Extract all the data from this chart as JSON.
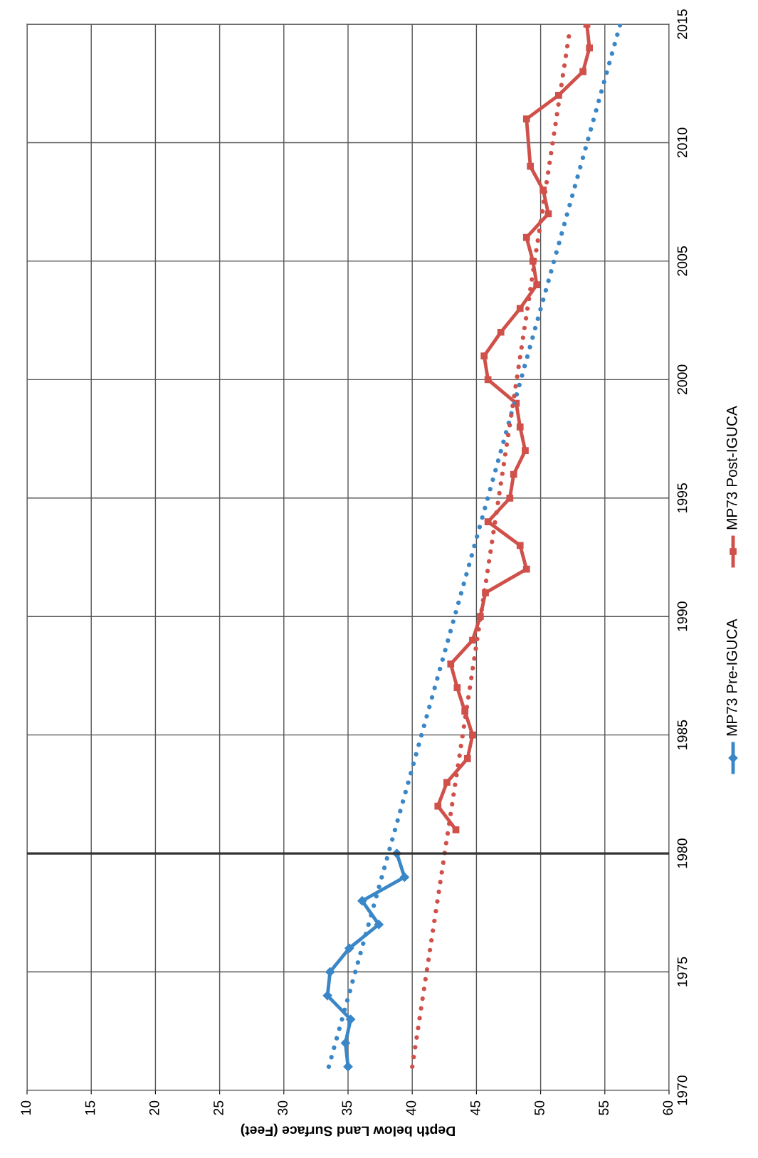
{
  "chart_data": {
    "type": "line",
    "xlabel": "Depth below Land Surface (Feet)",
    "xlim": [
      10,
      60
    ],
    "xticks": [
      10,
      15,
      20,
      25,
      30,
      35,
      40,
      45,
      50,
      55,
      60
    ],
    "ylim": [
      1970,
      2015
    ],
    "yticks": [
      1970,
      1975,
      1980,
      1985,
      1990,
      1995,
      2000,
      2005,
      2010,
      2015
    ],
    "grid": true,
    "legend": "right",
    "ref_lines": [
      {
        "axis": "y",
        "value": 1980,
        "color": "#333333"
      }
    ],
    "series": [
      {
        "name": "MP73 Pre-IGUCA",
        "color": "#3a87c8",
        "marker": "diamond",
        "line_style": "solid",
        "x": [
          35.0,
          34.8,
          35.2,
          33.4,
          33.6,
          35.1,
          37.4,
          36.1,
          39.4,
          38.8
        ],
        "values": [
          1971,
          1972,
          1973,
          1974,
          1975,
          1976,
          1977,
          1978,
          1979,
          1980
        ]
      },
      {
        "name": "MP73 Post-IGUCA",
        "color": "#d0504a",
        "marker": "square",
        "line_style": "solid",
        "x": [
          43.4,
          42.0,
          42.7,
          44.3,
          44.7,
          44.1,
          43.5,
          43.0,
          44.7,
          45.3,
          45.7,
          48.9,
          48.4,
          45.9,
          47.6,
          47.9,
          48.8,
          48.4,
          48.1,
          45.9,
          45.6,
          46.9,
          48.4,
          49.7,
          49.4,
          48.9,
          50.6,
          50.2,
          49.2,
          48.9,
          51.4,
          53.3,
          53.8,
          53.6
        ],
        "values": [
          1981,
          1982,
          1983,
          1984,
          1985,
          1986,
          1987,
          1988,
          1989,
          1990,
          1991,
          1992,
          1993,
          1994,
          1995,
          1996,
          1997,
          1998,
          1999,
          2000,
          2001,
          2002,
          2003,
          2004,
          2005,
          2006,
          2007,
          2008,
          2009,
          2011,
          2012,
          2013,
          2014,
          2015
        ]
      },
      {
        "color": "#3a87c8",
        "marker": "none",
        "line_style": "dotted",
        "x": [
          33.5,
          56.2
        ],
        "values": [
          1971,
          2015
        ]
      },
      {
        "color": "#d0504a",
        "marker": "none",
        "line_style": "dotted",
        "x": [
          40.0,
          52.2
        ],
        "values": [
          1971,
          2014.5
        ]
      }
    ]
  }
}
